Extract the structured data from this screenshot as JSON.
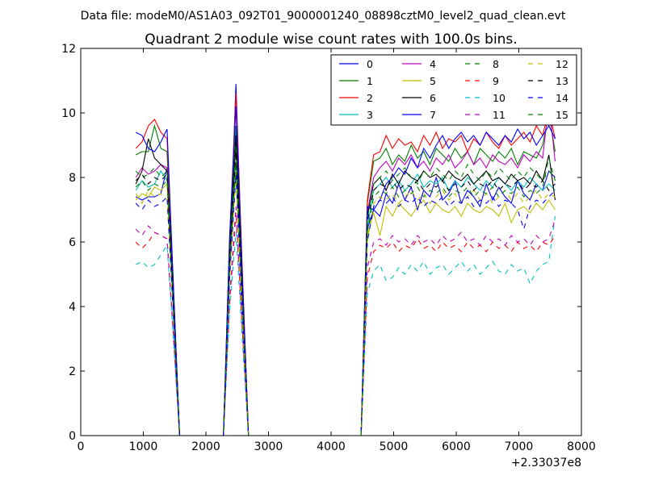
{
  "figure": {
    "suptitle": "Data file: modeM0/AS1A03_092T01_9000001240_08898cztM0_level2_quad_clean.evt",
    "x_offset_label": "+2.33037e8"
  },
  "chart_data": {
    "type": "line",
    "title": "Quadrant 2 module wise count rates with 100.0s bins.",
    "xlabel": "",
    "ylabel": "",
    "xlim": [
      0,
      8000
    ],
    "ylim": [
      0,
      12
    ],
    "x_ticks": [
      "0",
      "1000",
      "2000",
      "3000",
      "4000",
      "5000",
      "6000",
      "7000",
      "8000"
    ],
    "y_ticks": [
      "0",
      "2",
      "4",
      "6",
      "8",
      "10",
      "12"
    ],
    "grid": false,
    "legend_position": "top-right",
    "x": [
      880,
      980,
      1080,
      1180,
      1280,
      1380,
      1480,
      1580,
      1680,
      1780,
      1880,
      1980,
      2080,
      2180,
      2280,
      2380,
      2480,
      2580,
      2680,
      2780,
      2880,
      2980,
      3080,
      3180,
      3280,
      3380,
      3480,
      3580,
      3680,
      3780,
      3880,
      3980,
      4080,
      4180,
      4280,
      4380,
      4480,
      4580,
      4680,
      4780,
      4880,
      4980,
      5080,
      5180,
      5280,
      5380,
      5480,
      5580,
      5680,
      5780,
      5880,
      5980,
      6080,
      6180,
      6280,
      6380,
      6480,
      6580,
      6680,
      6780,
      6880,
      6980,
      7080,
      7180,
      7280,
      7380,
      7480,
      7580
    ],
    "series": [
      {
        "name": "0",
        "color": "#0000ff",
        "dash": "solid",
        "values": [
          7.4,
          7.3,
          7.4,
          7.4,
          7.5,
          8.3,
          4.2,
          0,
          0,
          0,
          0,
          0,
          0,
          0,
          0,
          5.5,
          10.9,
          5.0,
          0,
          0,
          0,
          0,
          0,
          0,
          0,
          0,
          0,
          0,
          0,
          0,
          0,
          0,
          0,
          0,
          0,
          0,
          0,
          6.4,
          7.0,
          6.8,
          7.5,
          7.2,
          7.8,
          7.3,
          7.7,
          7.0,
          7.6,
          7.4,
          8.0,
          7.3,
          7.5,
          7.9,
          7.2,
          7.6,
          7.4,
          7.1,
          7.8,
          7.3,
          7.7,
          7.4,
          7.2,
          7.9,
          7.5,
          7.3,
          7.8,
          7.6,
          8.2,
          8.0
        ]
      },
      {
        "name": "1",
        "color": "#008000",
        "dash": "solid",
        "values": [
          8.7,
          8.8,
          8.8,
          9.6,
          8.9,
          8.8,
          4.4,
          0,
          0,
          0,
          0,
          0,
          0,
          0,
          0,
          5.9,
          9.6,
          4.6,
          0,
          0,
          0,
          0,
          0,
          0,
          0,
          0,
          0,
          0,
          0,
          0,
          0,
          0,
          0,
          0,
          0,
          0,
          0,
          7.2,
          8.5,
          8.6,
          8.9,
          8.4,
          8.7,
          8.5,
          9.0,
          8.6,
          8.8,
          8.4,
          8.9,
          8.7,
          8.5,
          8.9,
          8.6,
          8.8,
          8.4,
          8.9,
          8.7,
          8.5,
          8.8,
          8.6,
          8.9,
          8.4,
          8.8,
          8.7,
          8.6,
          9.0,
          10.0,
          8.8
        ]
      },
      {
        "name": "2",
        "color": "#ff0000",
        "dash": "solid",
        "values": [
          8.9,
          9.1,
          9.6,
          9.8,
          9.4,
          9.2,
          4.6,
          0,
          0,
          0,
          0,
          0,
          0,
          0,
          0,
          6.1,
          10.6,
          5.2,
          0,
          0,
          0,
          0,
          0,
          0,
          0,
          0,
          0,
          0,
          0,
          0,
          0,
          0,
          0,
          0,
          0,
          0,
          0,
          7.3,
          8.7,
          8.8,
          9.3,
          8.9,
          9.2,
          9.0,
          9.1,
          8.8,
          9.3,
          9.0,
          9.4,
          8.9,
          9.2,
          9.1,
          9.3,
          8.8,
          9.2,
          9.0,
          9.4,
          9.1,
          8.9,
          9.3,
          9.0,
          9.2,
          9.4,
          9.1,
          9.6,
          9.3,
          10.1,
          9.2
        ]
      },
      {
        "name": "3",
        "color": "#00bfbf",
        "dash": "solid",
        "values": [
          7.6,
          7.9,
          7.7,
          7.8,
          8.2,
          7.9,
          4.0,
          0,
          0,
          0,
          0,
          0,
          0,
          0,
          0,
          5.2,
          8.4,
          4.0,
          0,
          0,
          0,
          0,
          0,
          0,
          0,
          0,
          0,
          0,
          0,
          0,
          0,
          0,
          0,
          0,
          0,
          0,
          0,
          6.4,
          7.6,
          7.8,
          8.0,
          7.7,
          7.9,
          7.6,
          7.8,
          8.1,
          7.7,
          7.9,
          7.8,
          8.0,
          7.6,
          7.9,
          7.7,
          8.0,
          7.8,
          7.6,
          7.9,
          7.7,
          8.0,
          7.8,
          7.6,
          7.9,
          7.7,
          8.0,
          7.8,
          7.6,
          7.8,
          7.6
        ]
      },
      {
        "name": "4",
        "color": "#bf00bf",
        "dash": "solid",
        "values": [
          8.0,
          8.3,
          8.1,
          8.2,
          8.4,
          8.3,
          4.2,
          0,
          0,
          0,
          0,
          0,
          0,
          0,
          0,
          5.6,
          9.1,
          4.4,
          0,
          0,
          0,
          0,
          0,
          0,
          0,
          0,
          0,
          0,
          0,
          0,
          0,
          0,
          0,
          0,
          0,
          0,
          0,
          6.9,
          8.0,
          8.3,
          8.5,
          8.2,
          8.6,
          8.4,
          8.7,
          8.3,
          8.5,
          8.2,
          8.6,
          8.4,
          8.7,
          8.3,
          8.5,
          8.8,
          8.4,
          8.6,
          8.3,
          8.7,
          8.5,
          8.4,
          8.6,
          8.3,
          8.7,
          8.5,
          8.8,
          8.6,
          10.3,
          8.5
        ]
      },
      {
        "name": "5",
        "color": "#bfbf00",
        "dash": "solid",
        "values": [
          7.3,
          7.5,
          7.4,
          7.7,
          7.6,
          7.8,
          3.9,
          0,
          0,
          0,
          0,
          0,
          0,
          0,
          0,
          5.1,
          8.2,
          3.9,
          0,
          0,
          0,
          0,
          0,
          0,
          0,
          0,
          0,
          0,
          0,
          0,
          0,
          0,
          0,
          0,
          0,
          0,
          0,
          6.2,
          6.9,
          6.2,
          7.1,
          6.8,
          7.2,
          7.0,
          6.8,
          7.1,
          7.3,
          6.9,
          7.2,
          7.0,
          6.9,
          7.1,
          6.8,
          7.2,
          7.0,
          6.9,
          7.1,
          7.0,
          6.8,
          7.2,
          6.6,
          7.0,
          7.1,
          6.9,
          7.2,
          7.0,
          7.3,
          7.0
        ]
      },
      {
        "name": "6",
        "color": "#000000",
        "dash": "solid",
        "values": [
          7.8,
          8.2,
          9.2,
          8.6,
          8.4,
          8.2,
          4.2,
          0,
          0,
          0,
          0,
          0,
          0,
          0,
          0,
          5.6,
          9.3,
          4.5,
          0,
          0,
          0,
          0,
          0,
          0,
          0,
          0,
          0,
          0,
          0,
          0,
          0,
          0,
          0,
          0,
          0,
          0,
          0,
          6.8,
          7.8,
          8.0,
          7.6,
          8.1,
          7.8,
          8.2,
          8.0,
          7.9,
          8.2,
          8.0,
          8.1,
          7.9,
          8.2,
          8.0,
          7.9,
          8.1,
          7.8,
          8.0,
          8.2,
          7.9,
          8.0,
          7.8,
          8.1,
          7.9,
          8.0,
          7.8,
          8.2,
          7.9,
          8.7,
          7.3
        ]
      },
      {
        "name": "7",
        "color": "#0000ff",
        "dash": "solid",
        "values": [
          9.4,
          9.3,
          8.9,
          8.8,
          9.1,
          9.5,
          4.7,
          0,
          0,
          0,
          0,
          0,
          0,
          0,
          0,
          6.2,
          10.2,
          5.0,
          0,
          0,
          0,
          0,
          0,
          0,
          0,
          0,
          0,
          0,
          0,
          0,
          0,
          0,
          0,
          0,
          0,
          0,
          0,
          7.1,
          7.0,
          7.3,
          7.8,
          8.0,
          8.3,
          8.1,
          8.6,
          8.3,
          8.9,
          8.6,
          9.0,
          9.3,
          8.9,
          9.2,
          9.4,
          9.1,
          9.3,
          9.0,
          9.4,
          9.2,
          9.0,
          9.3,
          9.1,
          9.5,
          9.2,
          9.4,
          9.0,
          9.3,
          9.6,
          9.2
        ]
      },
      {
        "name": "8",
        "color": "#008000",
        "dash": "dashed",
        "values": [
          8.2,
          8.0,
          8.1,
          8.3,
          8.0,
          8.2,
          4.1,
          0,
          0,
          0,
          0,
          0,
          0,
          0,
          0,
          5.5,
          9.0,
          4.3,
          0,
          0,
          0,
          0,
          0,
          0,
          0,
          0,
          0,
          0,
          0,
          0,
          0,
          0,
          0,
          0,
          0,
          0,
          0,
          6.7,
          7.8,
          8.0,
          8.2,
          7.9,
          8.1,
          8.3,
          8.0,
          7.8,
          8.2,
          8.0,
          8.3,
          8.1,
          7.9,
          8.2,
          8.0,
          8.4,
          8.1,
          7.9,
          8.2,
          8.0,
          8.3,
          8.1,
          7.9,
          8.2,
          8.0,
          8.3,
          8.1,
          7.9,
          8.2,
          8.0
        ]
      },
      {
        "name": "9",
        "color": "#ff0000",
        "dash": "dashed",
        "values": [
          6.0,
          5.8,
          6.0,
          6.3,
          6.2,
          6.1,
          3.1,
          0,
          0,
          0,
          0,
          0,
          0,
          0,
          0,
          4.1,
          6.9,
          3.3,
          0,
          0,
          0,
          0,
          0,
          0,
          0,
          0,
          0,
          0,
          0,
          0,
          0,
          0,
          0,
          0,
          0,
          0,
          0,
          4.9,
          5.7,
          5.9,
          5.8,
          6.0,
          5.7,
          5.9,
          5.8,
          6.1,
          5.8,
          5.9,
          5.7,
          6.0,
          5.8,
          5.9,
          5.7,
          6.0,
          5.8,
          5.9,
          5.7,
          6.0,
          5.8,
          5.9,
          5.7,
          6.0,
          5.8,
          5.9,
          5.7,
          6.0,
          5.9,
          6.2
        ]
      },
      {
        "name": "10",
        "color": "#00bfbf",
        "dash": "dashed",
        "values": [
          5.3,
          5.4,
          5.2,
          5.3,
          5.6,
          5.9,
          3.0,
          0,
          0,
          0,
          0,
          0,
          0,
          0,
          0,
          3.9,
          6.3,
          3.0,
          0,
          0,
          0,
          0,
          0,
          0,
          0,
          0,
          0,
          0,
          0,
          0,
          0,
          0,
          0,
          0,
          0,
          0,
          0,
          4.4,
          5.1,
          5.3,
          4.8,
          4.9,
          5.2,
          5.0,
          5.3,
          5.1,
          5.4,
          5.0,
          5.2,
          5.3,
          5.0,
          5.2,
          5.4,
          5.1,
          5.3,
          5.0,
          5.2,
          5.4,
          5.1,
          5.0,
          5.3,
          5.1,
          5.2,
          4.7,
          5.1,
          5.3,
          5.4,
          6.8
        ]
      },
      {
        "name": "11",
        "color": "#bf00bf",
        "dash": "dashed",
        "values": [
          6.4,
          6.2,
          6.5,
          6.3,
          6.2,
          6.1,
          3.2,
          0,
          0,
          0,
          0,
          0,
          0,
          0,
          0,
          4.3,
          7.1,
          3.4,
          0,
          0,
          0,
          0,
          0,
          0,
          0,
          0,
          0,
          0,
          0,
          0,
          0,
          0,
          0,
          0,
          0,
          0,
          0,
          5.2,
          6.0,
          6.1,
          5.9,
          6.2,
          6.0,
          6.1,
          5.9,
          6.2,
          6.0,
          6.1,
          5.9,
          6.2,
          6.0,
          6.1,
          6.3,
          6.0,
          6.1,
          5.9,
          6.2,
          6.0,
          6.1,
          5.9,
          6.2,
          6.0,
          6.1,
          5.9,
          6.2,
          6.0,
          6.1,
          6.7
        ]
      },
      {
        "name": "12",
        "color": "#bfbf00",
        "dash": "dashed",
        "values": [
          7.5,
          7.2,
          7.6,
          7.4,
          7.5,
          7.3,
          3.7,
          0,
          0,
          0,
          0,
          0,
          0,
          0,
          0,
          4.9,
          8.0,
          3.8,
          0,
          0,
          0,
          0,
          0,
          0,
          0,
          0,
          0,
          0,
          0,
          0,
          0,
          0,
          0,
          0,
          0,
          0,
          0,
          6.0,
          7.2,
          7.4,
          7.3,
          7.5,
          7.2,
          7.4,
          7.6,
          7.3,
          7.5,
          7.2,
          7.4,
          7.6,
          7.3,
          7.5,
          7.2,
          7.4,
          7.6,
          7.3,
          7.5,
          7.2,
          7.4,
          7.6,
          7.3,
          7.5,
          7.2,
          7.4,
          7.6,
          7.3,
          7.5,
          7.4
        ]
      },
      {
        "name": "13",
        "color": "#000000",
        "dash": "dashed",
        "values": [
          7.9,
          8.1,
          7.8,
          8.0,
          7.9,
          8.1,
          4.1,
          0,
          0,
          0,
          0,
          0,
          0,
          0,
          0,
          5.4,
          8.8,
          4.2,
          0,
          0,
          0,
          0,
          0,
          0,
          0,
          0,
          0,
          0,
          0,
          0,
          0,
          0,
          0,
          0,
          0,
          0,
          0,
          6.6,
          7.6,
          7.8,
          7.7,
          7.9,
          7.6,
          7.8,
          7.7,
          7.9,
          7.6,
          7.8,
          7.7,
          7.9,
          7.6,
          7.8,
          7.7,
          7.9,
          7.6,
          7.8,
          7.7,
          7.9,
          7.6,
          7.8,
          7.7,
          7.9,
          7.6,
          7.8,
          7.7,
          7.9,
          7.6,
          7.8
        ]
      },
      {
        "name": "14",
        "color": "#0000ff",
        "dash": "dashed",
        "values": [
          7.2,
          7.0,
          7.3,
          7.1,
          7.2,
          7.4,
          3.7,
          0,
          0,
          0,
          0,
          0,
          0,
          0,
          0,
          4.9,
          8.1,
          3.9,
          0,
          0,
          0,
          0,
          0,
          0,
          0,
          0,
          0,
          0,
          0,
          0,
          0,
          0,
          0,
          0,
          0,
          0,
          0,
          6.0,
          7.1,
          7.3,
          7.2,
          7.4,
          7.1,
          7.3,
          7.2,
          7.4,
          7.1,
          7.3,
          7.2,
          7.4,
          7.1,
          7.3,
          7.2,
          7.4,
          7.1,
          7.3,
          7.2,
          7.4,
          7.1,
          7.3,
          7.2,
          7.0,
          6.4,
          7.1,
          7.3,
          7.2,
          7.4,
          7.6
        ]
      },
      {
        "name": "15",
        "color": "#008000",
        "dash": "dashed",
        "values": [
          7.7,
          7.9,
          7.6,
          7.8,
          7.7,
          7.9,
          3.9,
          0,
          0,
          0,
          0,
          0,
          0,
          0,
          0,
          5.2,
          8.5,
          4.1,
          0,
          0,
          0,
          0,
          0,
          0,
          0,
          0,
          0,
          0,
          0,
          0,
          0,
          0,
          0,
          0,
          0,
          0,
          0,
          6.3,
          7.4,
          7.6,
          7.5,
          7.7,
          7.4,
          7.6,
          7.5,
          7.7,
          7.4,
          7.6,
          7.5,
          7.7,
          7.4,
          7.6,
          7.5,
          7.7,
          7.4,
          7.6,
          7.5,
          7.7,
          7.4,
          7.6,
          7.5,
          7.7,
          7.4,
          7.6,
          7.5,
          7.7,
          8.6,
          7.9
        ]
      }
    ]
  }
}
